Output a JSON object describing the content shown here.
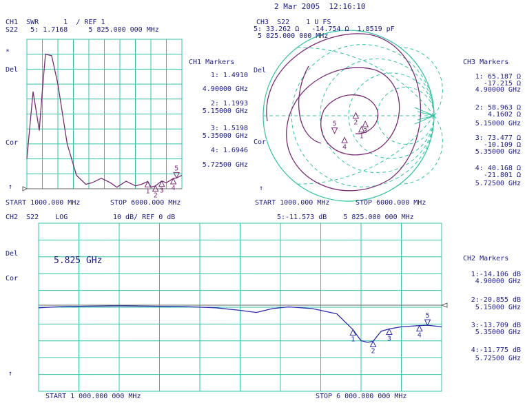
{
  "datetime": "2 Mar 2005  12:16:10",
  "ch1": {
    "title_line1": "CH1  SWR      1  / REF 1",
    "title_line2": "S22   5: 1.7168     5 825.000 000 MHz",
    "side_star": "*",
    "side_del": "Del",
    "side_cor": "Cor",
    "side_arrow": "↑",
    "start": "START 1000.000 MHz",
    "stop": "STOP 6000.000 MHz",
    "markers_title": "CH1 Markers",
    "markers": [
      {
        "value": "1: 1.4910",
        "freq": "4.90000 GHz"
      },
      {
        "value": "2: 1.1993",
        "freq": "5.15000 GHz"
      },
      {
        "value": "3: 1.5198",
        "freq": "5.35000 GHz"
      },
      {
        "value": "4: 1.6946",
        "freq": "5.72500 GHz"
      }
    ]
  },
  "ch3": {
    "title_line1": "CH3  S22    1 U FS",
    "title_line2": "5: 33.262 Ω   -14.754 Ω  1.8519 pF",
    "title_line3": "5 825.000 000 MHz",
    "side_del": "Del",
    "side_cor": "Cor",
    "side_arrow": "↑",
    "start": "START 1000.000 MHz",
    "stop": "STOP 6000.000 MHz",
    "markers_title": "CH3 Markers",
    "markers": [
      {
        "r": "1: 65.187 Ω",
        "x": "-17.215 Ω",
        "freq": "4.90000 GHz"
      },
      {
        "r": "2: 58.963 Ω",
        "x": "4.1602 Ω",
        "freq": "5.15000 GHz"
      },
      {
        "r": "3: 73.477 Ω",
        "x": "-10.109 Ω",
        "freq": "5.35000 GHz"
      },
      {
        "r": "4: 40.168 Ω",
        "x": "-21.801 Ω",
        "freq": "5.72500 GHz"
      }
    ]
  },
  "ch2": {
    "title_left": "CH2  S22    LOG",
    "title_mid": "10 dB/ REF 0 dB",
    "title_right": "5:-11.573 dB    5 825.000 000 MHz",
    "annotation": "5.825 GHz",
    "side_del": "Del",
    "side_cor": "Cor",
    "side_arrow": "↑",
    "start": "START 1 000.000 000 MHz",
    "stop": "STOP 6 000.000 000 MHz",
    "markers_title": "CH2 Markers",
    "markers": [
      {
        "value": "1:-14.106 dB",
        "freq": "4.90000 GHz"
      },
      {
        "value": "2:-20.855 dB",
        "freq": "5.15000 GHz"
      },
      {
        "value": "3:-13.709 dB",
        "freq": "5.35000 GHz"
      },
      {
        "value": "4:-11.775 dB",
        "freq": "5.72500 GHz"
      }
    ]
  },
  "colors": {
    "grid": "#2fc4a4",
    "trace_purple": "#7a2a78",
    "trace_blue": "#2a2ab0",
    "text": "#1a1a8c",
    "ref_line": "#666666"
  },
  "chart_data": [
    {
      "type": "line",
      "title": "CH1 SWR",
      "x": [
        1000,
        1200,
        1400,
        1500,
        1600,
        1800,
        2000,
        2300,
        2600,
        2900,
        3100,
        3400,
        3700,
        3900,
        4200,
        4500,
        4700,
        4900,
        5000,
        5150,
        5350,
        5500,
        5725,
        5825,
        6000
      ],
      "series": [
        {
          "values": [
            3.0,
            7.5,
            4.9,
            7.6,
            10.0,
            9.9,
            8.0,
            4.0,
            1.9,
            1.3,
            1.4,
            1.7,
            1.4,
            1.1,
            1.5,
            1.2,
            1.3,
            1.49,
            1.1,
            1.2,
            1.52,
            1.4,
            1.69,
            1.72,
            1.9
          ]
        }
      ],
      "xlim": [
        1000,
        6000
      ],
      "ylim": [
        1,
        11
      ],
      "markers": [
        {
          "label": "1",
          "x": 4900
        },
        {
          "label": "2",
          "x": 5150
        },
        {
          "label": "3",
          "x": 5350
        },
        {
          "label": "4",
          "x": 5725
        },
        {
          "label": "5",
          "x": 5825
        }
      ]
    },
    {
      "type": "line",
      "title": "CH3 S22 Smith chart",
      "markers": [
        {
          "label": "1",
          "r_ohm": 65.187,
          "x_ohm": -17.215,
          "freq_ghz": 4.9
        },
        {
          "label": "2",
          "r_ohm": 58.963,
          "x_ohm": 4.1602,
          "freq_ghz": 5.15
        },
        {
          "label": "3",
          "r_ohm": 73.477,
          "x_ohm": -10.109,
          "freq_ghz": 5.35
        },
        {
          "label": "4",
          "r_ohm": 40.168,
          "x_ohm": -21.801,
          "freq_ghz": 5.725
        },
        {
          "label": "5",
          "r_ohm": 33.262,
          "x_ohm": -14.754,
          "freq_ghz": 5.825
        }
      ]
    },
    {
      "type": "line",
      "title": "CH2 S22 LOG",
      "x": [
        1000,
        1300,
        1600,
        2000,
        2400,
        2800,
        3200,
        3500,
        3700,
        3900,
        4100,
        4400,
        4700,
        4900,
        5000,
        5080,
        5150,
        5250,
        5350,
        5500,
        5725,
        5825,
        6000
      ],
      "series": [
        {
          "values": [
            -1.5,
            -0.8,
            -0.6,
            -0.4,
            -0.6,
            -0.8,
            -1.5,
            -3.0,
            -4.2,
            -2.0,
            -1.0,
            -2.0,
            -5.0,
            -14.106,
            -20.5,
            -21.5,
            -20.855,
            -15.0,
            -13.709,
            -12.5,
            -11.775,
            -11.573,
            -12.5
          ]
        }
      ],
      "xlim": [
        1000,
        6000
      ],
      "ylim": [
        -50,
        0
      ],
      "markers": [
        {
          "label": "1",
          "x": 4900,
          "y": -14.106
        },
        {
          "label": "2",
          "x": 5150,
          "y": -20.855
        },
        {
          "label": "3",
          "x": 5350,
          "y": -13.709
        },
        {
          "label": "4",
          "x": 5725,
          "y": -11.775
        },
        {
          "label": "5",
          "x": 5825,
          "y": -11.573
        }
      ]
    }
  ]
}
